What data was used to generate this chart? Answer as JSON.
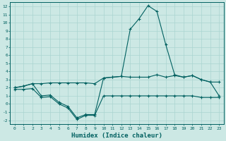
{
  "xlabel": "Humidex (Indice chaleur)",
  "bg_color": "#cce8e4",
  "grid_color": "#aad4d0",
  "line_color": "#006060",
  "x": [
    0,
    1,
    2,
    3,
    4,
    5,
    6,
    7,
    8,
    9,
    10,
    11,
    12,
    13,
    14,
    15,
    16,
    17,
    18,
    19,
    20,
    21,
    22,
    23
  ],
  "y_top": [
    2.0,
    2.2,
    2.5,
    1.0,
    1.1,
    0.2,
    -0.3,
    -1.7,
    -1.3,
    -1.3,
    3.2,
    3.3,
    3.4,
    9.2,
    10.5,
    12.1,
    11.4,
    7.3,
    3.6,
    3.3,
    3.5,
    3.0,
    2.7,
    2.7
  ],
  "y_mid": [
    2.0,
    2.2,
    2.5,
    2.5,
    2.6,
    2.6,
    2.6,
    2.6,
    2.6,
    2.5,
    3.2,
    3.3,
    3.4,
    3.3,
    3.3,
    3.3,
    3.6,
    3.3,
    3.5,
    3.3,
    3.5,
    3.0,
    2.7,
    1.0
  ],
  "y_bot": [
    1.8,
    1.8,
    1.9,
    0.8,
    0.9,
    0.0,
    -0.5,
    -1.9,
    -1.4,
    -1.4,
    1.0,
    1.0,
    1.0,
    1.0,
    1.0,
    1.0,
    1.0,
    1.0,
    1.0,
    1.0,
    1.0,
    0.8,
    0.8,
    0.8
  ],
  "xlim": [
    -0.5,
    23.5
  ],
  "ylim": [
    -2.5,
    12.5
  ],
  "yticks": [
    -2,
    -1,
    0,
    1,
    2,
    3,
    4,
    5,
    6,
    7,
    8,
    9,
    10,
    11,
    12
  ],
  "xticks": [
    0,
    1,
    2,
    3,
    4,
    5,
    6,
    7,
    8,
    9,
    10,
    11,
    12,
    13,
    14,
    15,
    16,
    17,
    18,
    19,
    20,
    21,
    22,
    23
  ]
}
